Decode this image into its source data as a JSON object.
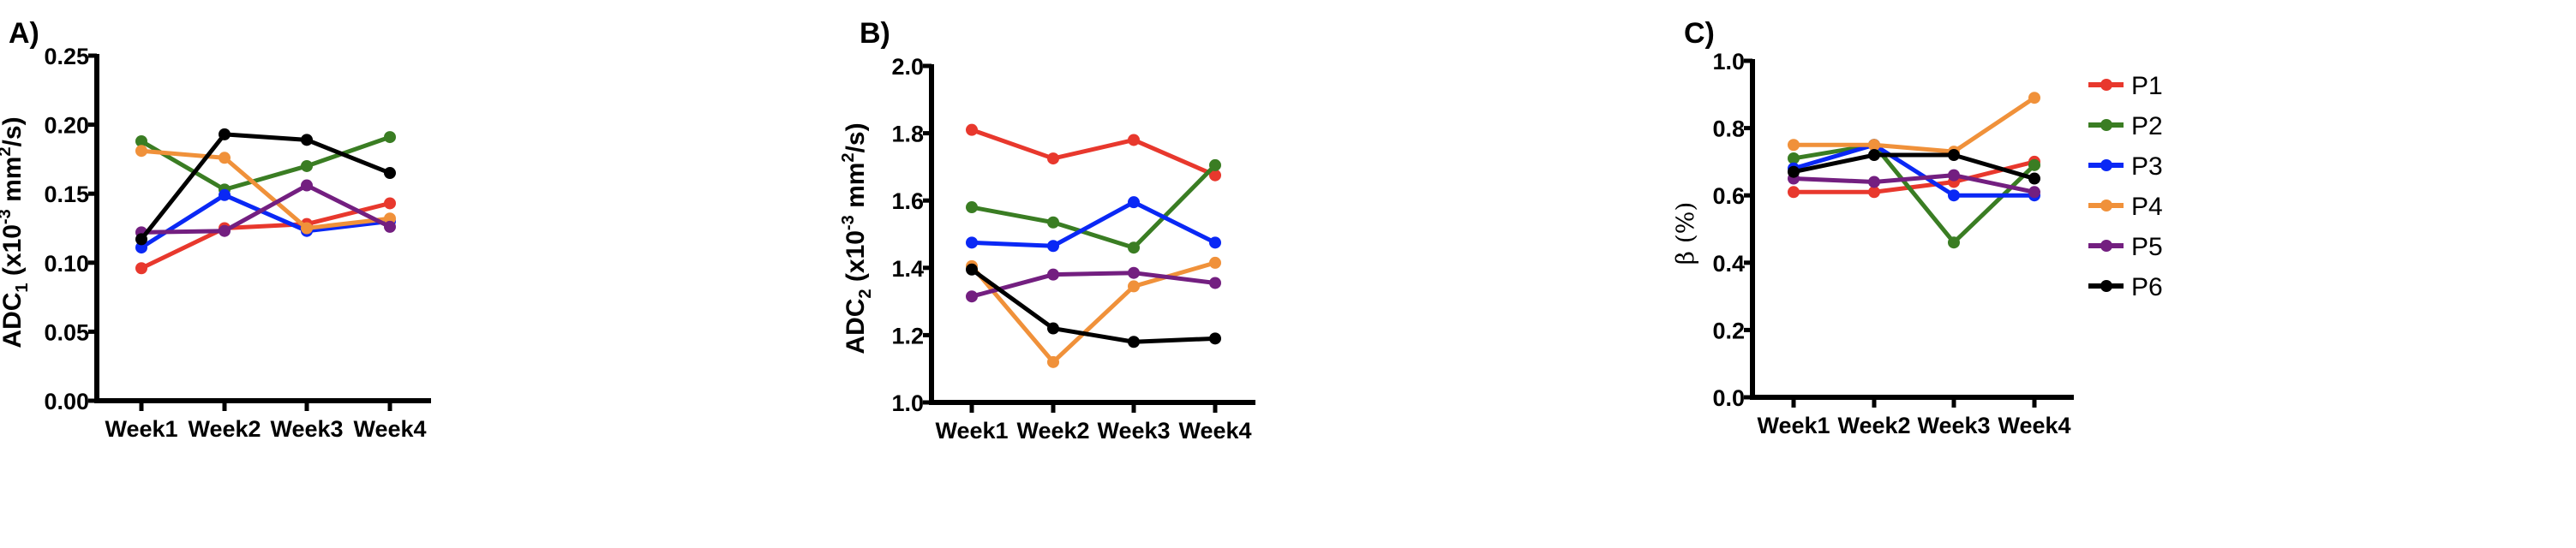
{
  "chart_data": [
    {
      "type": "line",
      "panel_label": "A)",
      "ylabel": {
        "main": "ADC",
        "sub": "1",
        "pre": " (x10",
        "sup1": "-3",
        "mid": " mm",
        "sup2": "2",
        "post": "/s)"
      },
      "categories": [
        "Week1",
        "Week2",
        "Week3",
        "Week4"
      ],
      "ylim": [
        0,
        0.25
      ],
      "yticks": [
        "0.00",
        "0.05",
        "0.10",
        "0.15",
        "0.20",
        "0.25"
      ],
      "grid": false,
      "series": [
        {
          "name": "P1",
          "color": "#e8382d",
          "values": [
            0.096,
            0.125,
            0.128,
            0.143
          ]
        },
        {
          "name": "P2",
          "color": "#3a7d23",
          "values": [
            0.188,
            0.153,
            0.17,
            0.191
          ]
        },
        {
          "name": "P3",
          "color": "#0a28f5",
          "values": [
            0.111,
            0.149,
            0.123,
            0.13
          ]
        },
        {
          "name": "P4",
          "color": "#f0913a",
          "values": [
            0.181,
            0.176,
            0.125,
            0.132
          ]
        },
        {
          "name": "P5",
          "color": "#731f80",
          "values": [
            0.122,
            0.123,
            0.156,
            0.126
          ]
        },
        {
          "name": "P6",
          "color": "#000000",
          "values": [
            0.117,
            0.193,
            0.189,
            0.165
          ]
        }
      ]
    },
    {
      "type": "line",
      "panel_label": "B)",
      "ylabel": {
        "main": "ADC",
        "sub": "2",
        "pre": " (x10",
        "sup1": "-3",
        "mid": " mm",
        "sup2": "2",
        "post": "/s)"
      },
      "categories": [
        "Week1",
        "Week2",
        "Week3",
        "Week4"
      ],
      "ylim": [
        1.0,
        2.0
      ],
      "yticks": [
        "1.0",
        "1.2",
        "1.4",
        "1.6",
        "1.8",
        "2.0"
      ],
      "grid": false,
      "series": [
        {
          "name": "P1",
          "color": "#e8382d",
          "values": [
            1.81,
            1.725,
            1.78,
            1.675
          ]
        },
        {
          "name": "P2",
          "color": "#3a7d23",
          "values": [
            1.58,
            1.535,
            1.46,
            1.705
          ]
        },
        {
          "name": "P3",
          "color": "#0a28f5",
          "values": [
            1.475,
            1.465,
            1.595,
            1.475
          ]
        },
        {
          "name": "P4",
          "color": "#f0913a",
          "values": [
            1.405,
            1.12,
            1.345,
            1.415
          ]
        },
        {
          "name": "P5",
          "color": "#731f80",
          "values": [
            1.315,
            1.38,
            1.385,
            1.355
          ]
        },
        {
          "name": "P6",
          "color": "#000000",
          "values": [
            1.395,
            1.22,
            1.18,
            1.19
          ]
        }
      ]
    },
    {
      "type": "line",
      "panel_label": "C)",
      "ylabel": {
        "main": "β (%)"
      },
      "categories": [
        "Week1",
        "Week2",
        "Week3",
        "Week4"
      ],
      "ylim": [
        0,
        1.0
      ],
      "yticks": [
        "0.0",
        "0.2",
        "0.4",
        "0.6",
        "0.8",
        "1.0"
      ],
      "grid": false,
      "legend": "right",
      "series": [
        {
          "name": "P1",
          "color": "#e8382d",
          "values": [
            0.61,
            0.61,
            0.64,
            0.7
          ]
        },
        {
          "name": "P2",
          "color": "#3a7d23",
          "values": [
            0.71,
            0.75,
            0.46,
            0.69
          ]
        },
        {
          "name": "P3",
          "color": "#0a28f5",
          "values": [
            0.68,
            0.75,
            0.6,
            0.6
          ]
        },
        {
          "name": "P4",
          "color": "#f0913a",
          "values": [
            0.75,
            0.75,
            0.73,
            0.89
          ]
        },
        {
          "name": "P5",
          "color": "#731f80",
          "values": [
            0.65,
            0.64,
            0.66,
            0.61
          ]
        },
        {
          "name": "P6",
          "color": "#000000",
          "values": [
            0.67,
            0.72,
            0.72,
            0.65
          ]
        }
      ]
    }
  ]
}
